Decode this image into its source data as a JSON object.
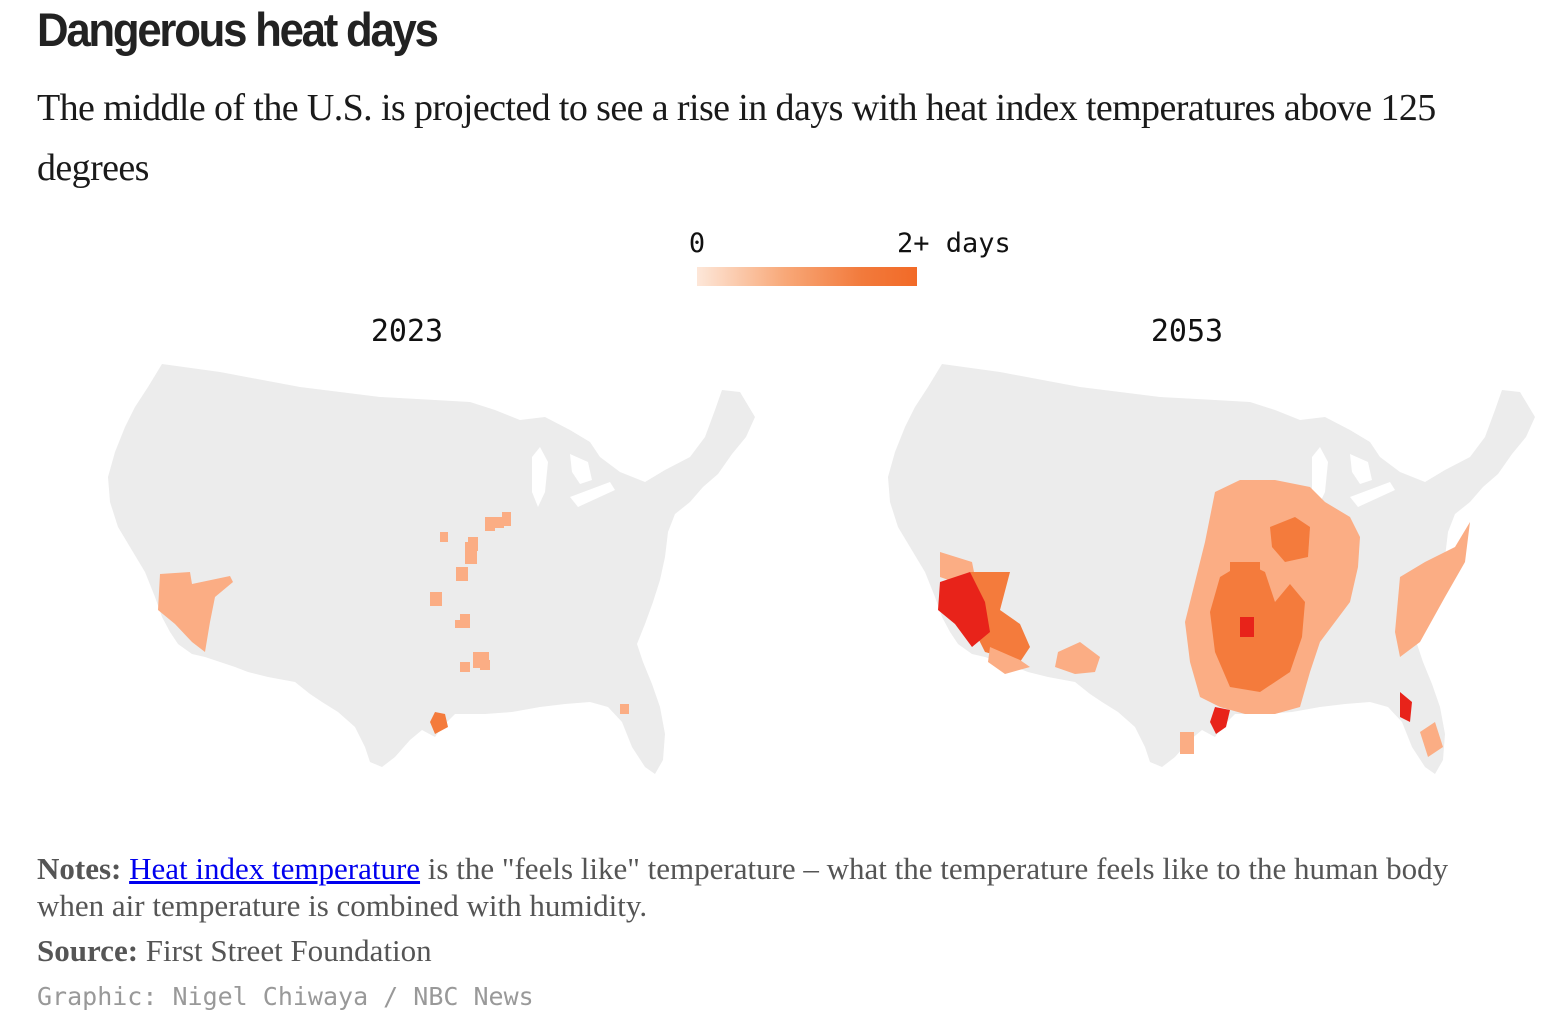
{
  "header": {
    "title": "Dangerous heat days",
    "subtitle": "The middle of the U.S. is projected to see a rise in days with heat index temperatures above 125 degrees"
  },
  "legend": {
    "min_label": "0",
    "max_label": "2+ days",
    "colors": [
      "#fde7d9",
      "#f8a878",
      "#f27a3c",
      "#f26a27"
    ]
  },
  "colors": {
    "land": "#ececec",
    "light": "#fbad84",
    "medium": "#f47b3c",
    "dark": "#f04a1d",
    "darkest": "#e8231a"
  },
  "maps": [
    {
      "title": "2023"
    },
    {
      "title": "2053"
    }
  ],
  "footer": {
    "notes_label": "Notes:",
    "notes_link": "Heat index temperature",
    "notes_text": " is the \"feels like\" temperature – what the temperature feels like to the human body when air temperature is combined with humidity.",
    "source_label": "Source:",
    "source_text": " First Street Foundation",
    "credit": "Graphic: Nigel Chiwaya / NBC News"
  }
}
